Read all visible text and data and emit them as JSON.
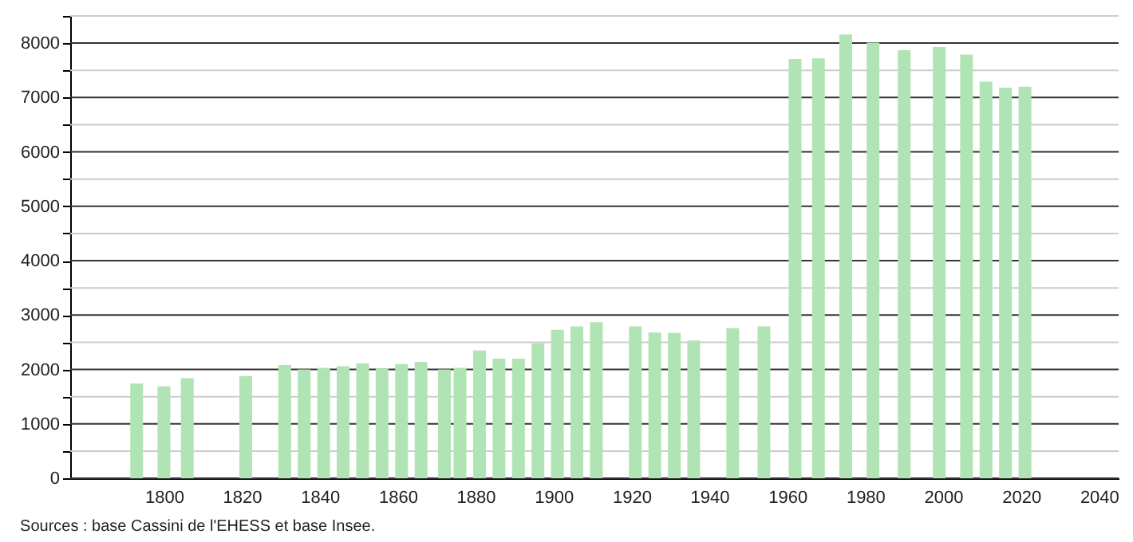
{
  "chart_data": {
    "type": "bar",
    "x": [
      1793,
      1800,
      1806,
      1821,
      1831,
      1836,
      1841,
      1846,
      1851,
      1856,
      1861,
      1866,
      1872,
      1876,
      1881,
      1886,
      1891,
      1896,
      1901,
      1906,
      1911,
      1921,
      1926,
      1931,
      1936,
      1946,
      1954,
      1962,
      1968,
      1975,
      1982,
      1990,
      1999,
      2006,
      2011,
      2016,
      2021
    ],
    "values": [
      1740,
      1690,
      1840,
      1880,
      2080,
      2000,
      2030,
      2060,
      2110,
      2020,
      2100,
      2140,
      2000,
      2030,
      2350,
      2200,
      2200,
      2480,
      2730,
      2790,
      2870,
      2790,
      2680,
      2670,
      2530,
      2760,
      2790,
      7710,
      7720,
      8160,
      8010,
      7870,
      7930,
      7790,
      7290,
      7180,
      7200
    ],
    "color": "#b0e4b4",
    "xlim": [
      1778,
      2043
    ],
    "xticks": [
      1800,
      1820,
      1840,
      1860,
      1880,
      1900,
      1920,
      1940,
      1960,
      1980,
      2000,
      2020,
      2040
    ],
    "ylim": [
      0,
      8500
    ],
    "yticks": [
      0,
      {
        "value": 500,
        "label": null
      },
      1000,
      {
        "value": 1500,
        "label": null
      },
      2000,
      {
        "value": 2500,
        "label": null
      },
      3000,
      {
        "value": 3500,
        "label": null
      },
      4000,
      {
        "value": 4500,
        "label": null
      },
      5000,
      {
        "value": 5500,
        "label": null
      },
      6000,
      {
        "value": 6500,
        "label": null
      },
      7000,
      {
        "value": 7500,
        "label": null
      },
      8000,
      {
        "value": 8500,
        "label": null
      }
    ],
    "grid": true,
    "annotations": [
      "Sources : base Cassini de l'EHESS et base Insee."
    ]
  }
}
